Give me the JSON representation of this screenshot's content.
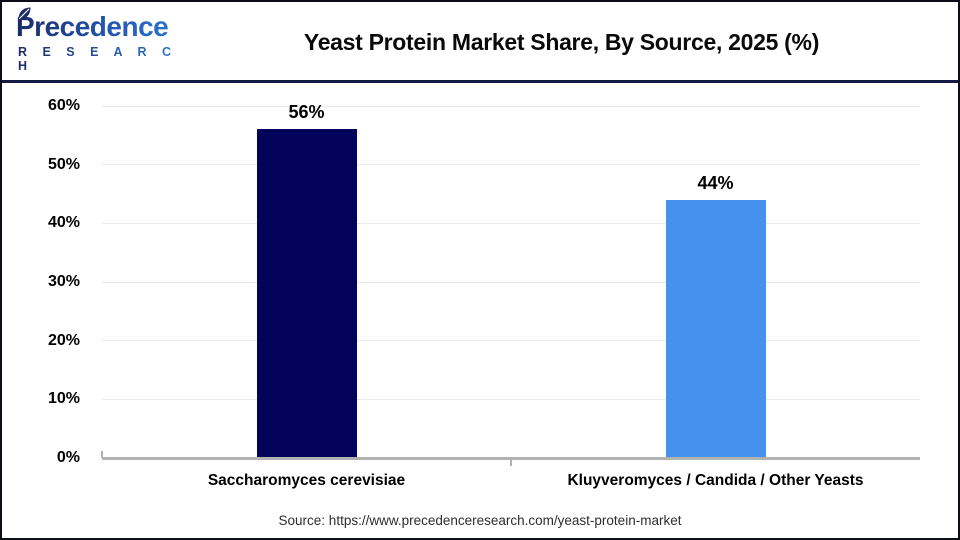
{
  "logo": {
    "name": "Precedence",
    "subtitle": "R E S E A R C H",
    "leaf_icon": "leaf-icon",
    "color_dark": "#1b2a68",
    "color_light": "#2e7ad2"
  },
  "header": {
    "title": "Yeast Protein Market Share, By Source, 2025 (%)"
  },
  "chart_data": {
    "type": "bar",
    "title": "Yeast Protein Market Share, By Source, 2025 (%)",
    "categories": [
      "Saccharomyces cerevisiae",
      "Kluyveromyces / Candida / Other Yeasts"
    ],
    "values": [
      56,
      44
    ],
    "value_labels": [
      "56%",
      "44%"
    ],
    "bar_colors": [
      "#02025a",
      "#4491ee"
    ],
    "xlabel": "",
    "ylabel": "",
    "ylim": [
      0,
      60
    ],
    "ytick_step": 10,
    "ytick_labels": [
      "0%",
      "10%",
      "20%",
      "30%",
      "40%",
      "50%",
      "60%"
    ],
    "grid": "horizontal",
    "legend": "none",
    "gridline_color": "#ebebeb",
    "axis_color": "#b2b2b2"
  },
  "source": {
    "text": "Source: https://www.precedenceresearch.com/yeast-protein-market"
  }
}
